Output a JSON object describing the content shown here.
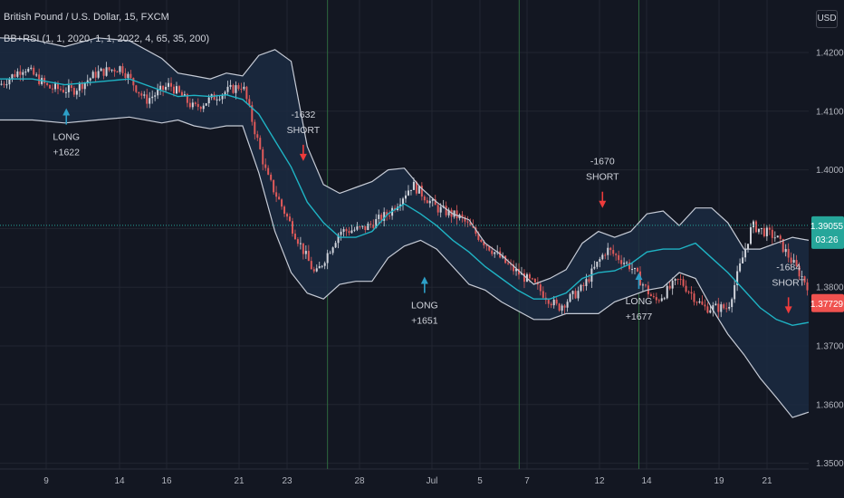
{
  "header": {
    "symbol_line": "British Pound / U.S. Dollar, 15, FXCM",
    "indicator_line": "BB+RSI (1, 1, 2020, 1, 1, 2022, 4, 65, 35, 200)"
  },
  "currency_badge": "USD",
  "price_tag": {
    "price": "1.39055",
    "countdown": "03:26"
  },
  "last_price_tag": "1.37729",
  "colors": {
    "background": "#131722",
    "grid": "#222631",
    "band_fill": "#1b2a41",
    "band_line": "#c6cbd6",
    "basis_line": "#1fb3c4",
    "up_candle": "#d1d4dc",
    "down_candle": "#e05a5a",
    "long_arrow": "#2d9fc7",
    "short_arrow": "#ee3b3b",
    "session_line": "#2e6b3f",
    "price_tag_bg": "#26a69a",
    "last_price_bg": "#f0524f",
    "axis_text": "#b2b5be"
  },
  "chart_data": {
    "type": "line",
    "title": "British Pound / U.S. Dollar, 15, FXCM",
    "x_tick_labels": [
      "9",
      "14",
      "16",
      "21",
      "23",
      "28",
      "Jul",
      "5",
      "7",
      "12",
      "14",
      "19",
      "21"
    ],
    "y_tick_labels": [
      "1.42000",
      "1.41000",
      "1.40000",
      "1.39000",
      "1.38000",
      "1.37000",
      "1.36000",
      "1.35000"
    ],
    "ylim": [
      1.3495,
      1.4225
    ],
    "x_range": [
      0,
      100
    ],
    "series": [
      {
        "key": "price",
        "x": [
          0,
          3,
          6,
          9,
          12,
          15,
          18,
          21,
          24,
          27,
          30,
          33,
          36,
          39,
          42,
          45,
          48,
          51,
          54,
          57,
          60,
          63,
          66,
          69,
          72,
          75,
          78,
          81,
          84,
          87,
          90,
          93,
          96,
          100
        ],
        "values": [
          1.4145,
          1.4175,
          1.414,
          1.4135,
          1.4165,
          1.4175,
          1.4118,
          1.4145,
          1.4105,
          1.4128,
          1.4145,
          1.399,
          1.3905,
          1.382,
          1.3895,
          1.39,
          1.3925,
          1.3975,
          1.3935,
          1.3918,
          1.3875,
          1.3835,
          1.3805,
          1.3765,
          1.3798,
          1.3865,
          1.3835,
          1.3775,
          1.3813,
          1.3765,
          1.3765,
          1.3905,
          1.3885,
          1.38
        ]
      },
      {
        "key": "bb_upper",
        "x": [
          0,
          4,
          8,
          12,
          16,
          20,
          22,
          24,
          26,
          28,
          30,
          32,
          34,
          36,
          38,
          40,
          42,
          44,
          46,
          48,
          50,
          52,
          54,
          56,
          58,
          60,
          62,
          64,
          66,
          68,
          70,
          72,
          74,
          76,
          78,
          80,
          82,
          84,
          86,
          88,
          90,
          92,
          94,
          96,
          98,
          100
        ],
        "values": [
          1.4225,
          1.4222,
          1.421,
          1.4225,
          1.422,
          1.419,
          1.4165,
          1.416,
          1.4155,
          1.4165,
          1.416,
          1.4195,
          1.4205,
          1.4185,
          1.404,
          1.3975,
          1.396,
          1.397,
          1.398,
          1.4,
          1.4003,
          1.397,
          1.3945,
          1.3925,
          1.3915,
          1.3875,
          1.3855,
          1.383,
          1.3805,
          1.3815,
          1.383,
          1.3875,
          1.3895,
          1.3885,
          1.3895,
          1.3925,
          1.393,
          1.3905,
          1.3935,
          1.3935,
          1.391,
          1.3865,
          1.3865,
          1.3875,
          1.3885,
          1.388
        ]
      },
      {
        "key": "bb_basis",
        "x": [
          0,
          4,
          8,
          12,
          16,
          20,
          22,
          24,
          26,
          28,
          30,
          32,
          34,
          36,
          38,
          40,
          42,
          44,
          46,
          48,
          50,
          52,
          54,
          56,
          58,
          60,
          62,
          64,
          66,
          68,
          70,
          72,
          74,
          76,
          78,
          80,
          82,
          84,
          86,
          88,
          90,
          92,
          94,
          96,
          98,
          100
        ],
        "values": [
          1.4155,
          1.4155,
          1.4145,
          1.415,
          1.4155,
          1.4135,
          1.4125,
          1.4127,
          1.4125,
          1.4128,
          1.412,
          1.4095,
          1.405,
          1.4005,
          1.3945,
          1.391,
          1.3885,
          1.3885,
          1.3895,
          1.3925,
          1.3942,
          1.3925,
          1.3905,
          1.388,
          1.386,
          1.3835,
          1.3815,
          1.3795,
          1.378,
          1.378,
          1.379,
          1.3815,
          1.3825,
          1.3828,
          1.384,
          1.386,
          1.3865,
          1.3865,
          1.3875,
          1.385,
          1.3825,
          1.3795,
          1.3765,
          1.3745,
          1.3735,
          1.374
        ]
      },
      {
        "key": "bb_lower",
        "x": [
          0,
          4,
          8,
          12,
          16,
          20,
          22,
          24,
          26,
          28,
          30,
          32,
          34,
          36,
          38,
          40,
          42,
          44,
          46,
          48,
          50,
          52,
          54,
          56,
          58,
          60,
          62,
          64,
          66,
          68,
          70,
          72,
          74,
          76,
          78,
          80,
          82,
          84,
          86,
          88,
          90,
          92,
          94,
          96,
          98,
          100
        ],
        "values": [
          1.4085,
          1.4085,
          1.408,
          1.4085,
          1.409,
          1.408,
          1.4085,
          1.4075,
          1.407,
          1.4075,
          1.4075,
          1.3995,
          1.3895,
          1.3825,
          1.379,
          1.378,
          1.3805,
          1.381,
          1.381,
          1.385,
          1.387,
          1.388,
          1.3865,
          1.3835,
          1.3805,
          1.3795,
          1.3775,
          1.376,
          1.3745,
          1.3745,
          1.3755,
          1.3755,
          1.3755,
          1.3775,
          1.3785,
          1.3795,
          1.38,
          1.3825,
          1.3815,
          1.3765,
          1.372,
          1.3685,
          1.3645,
          1.3612,
          1.3578,
          1.3587
        ]
      }
    ],
    "signals": [
      {
        "type": "long",
        "x": 8.2,
        "price": 1.4105,
        "text_lines": [
          "LONG",
          "+1622"
        ]
      },
      {
        "type": "short",
        "x": 37.5,
        "price": 1.4015,
        "text_lines": [
          "-1632",
          "SHORT"
        ]
      },
      {
        "type": "long",
        "x": 52.5,
        "price": 1.3818,
        "text_lines": [
          "LONG",
          "+1651"
        ]
      },
      {
        "type": "short",
        "x": 74.5,
        "price": 1.3935,
        "text_lines": [
          "-1670",
          "SHORT"
        ]
      },
      {
        "type": "long",
        "x": 79.0,
        "price": 1.3825,
        "text_lines": [
          "LONG",
          "+1677"
        ]
      },
      {
        "type": "short",
        "x": 97.5,
        "price": 1.3755,
        "text_lines": [
          "-1684",
          "SHORT"
        ]
      }
    ],
    "session_lines_x": [
      40.5,
      64.2,
      79.0
    ],
    "current_price": 1.39055,
    "last_price": 1.37729,
    "grid": true
  }
}
